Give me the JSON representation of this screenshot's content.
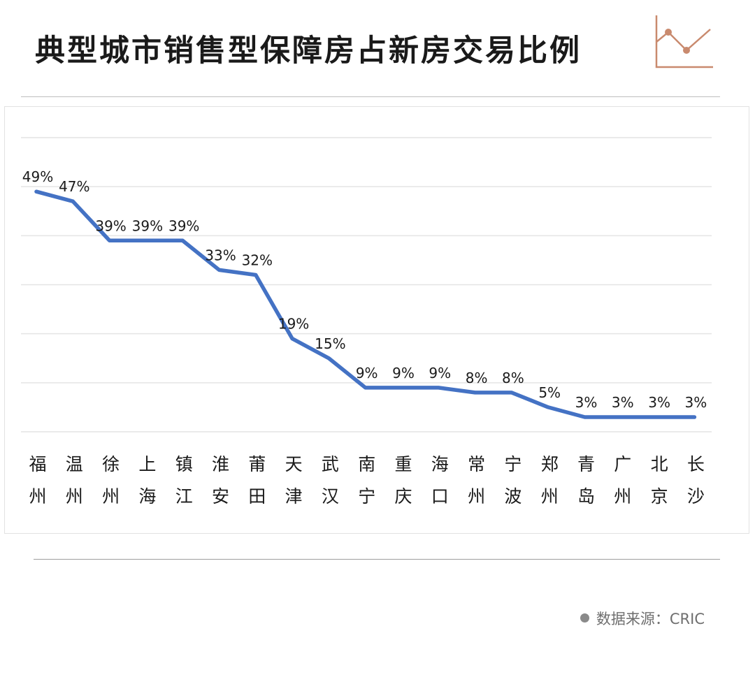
{
  "header": {
    "title": "典型城市销售型保障房占新房交易比例",
    "icon": "line-chart-icon",
    "icon_color": "#c98a6e"
  },
  "footer": {
    "source": "数据来源：CRIC",
    "bullet_icon": "bullet-dot-icon"
  },
  "chart_data": {
    "type": "line",
    "title": "典型城市销售型保障房占新房交易比例",
    "xlabel": "",
    "ylabel": "",
    "ylim": [
      0,
      0.6
    ],
    "y_unit": "%",
    "grid": true,
    "legend": "none",
    "line_color": "#4472c4",
    "categories": [
      "福州",
      "温州",
      "徐州",
      "上海",
      "镇江",
      "淮安",
      "莆田",
      "天津",
      "武汉",
      "南宁",
      "重庆",
      "海口",
      "常州",
      "宁波",
      "郑州",
      "青岛",
      "广州",
      "北京",
      "长沙"
    ],
    "values": [
      0.49,
      0.47,
      0.39,
      0.39,
      0.39,
      0.33,
      0.32,
      0.19,
      0.15,
      0.09,
      0.09,
      0.09,
      0.08,
      0.08,
      0.05,
      0.03,
      0.03,
      0.03,
      0.03
    ],
    "data_labels": [
      "49%",
      "47%",
      "39%",
      "39%",
      "39%",
      "33%",
      "32%",
      "19%",
      "15%",
      "9%",
      "9%",
      "9%",
      "8%",
      "8%",
      "5%",
      "3%",
      "3%",
      "3%",
      "3%"
    ]
  }
}
